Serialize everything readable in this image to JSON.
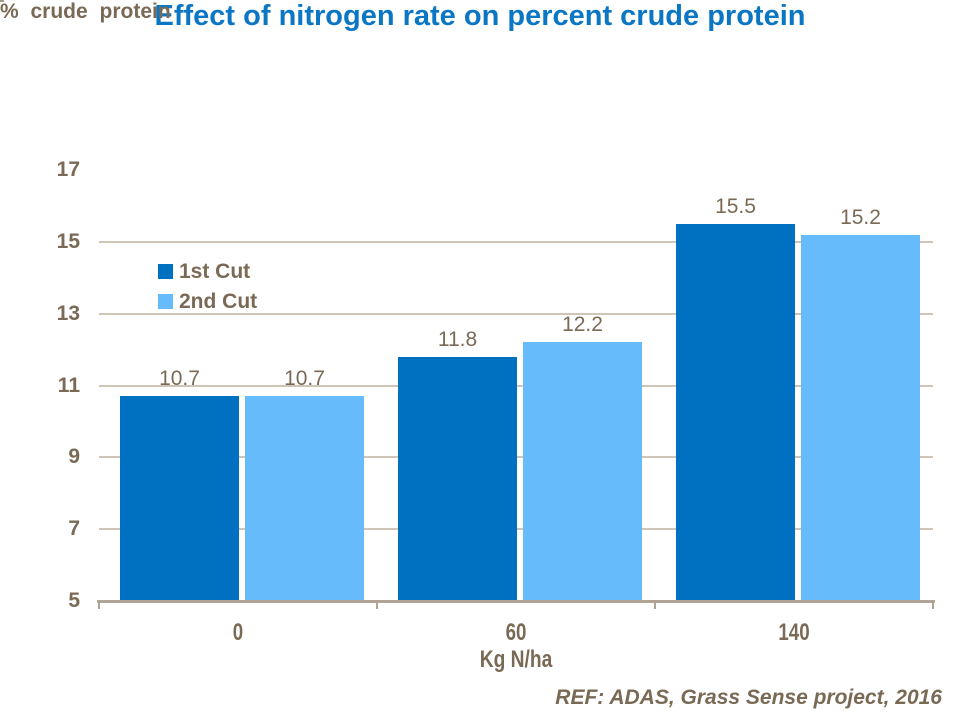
{
  "slide": {
    "footer": "REF: ADAS, Grass Sense project, 2016"
  },
  "chart_data": {
    "type": "bar",
    "title": "Effect of nitrogen rate on percent crude protein",
    "ylabel": "% crude protein",
    "xlabel": "Kg N/ha",
    "categories": [
      "0",
      "60",
      "140"
    ],
    "series": [
      {
        "name": "1st Cut",
        "color": "#0070C0",
        "values": [
          10.7,
          11.8,
          15.5
        ]
      },
      {
        "name": "2nd Cut",
        "color": "#66BCFA",
        "values": [
          10.7,
          12.2,
          15.2
        ]
      }
    ],
    "data_labels": [
      [
        "10.7",
        "11.8",
        "15.5"
      ],
      [
        "10.7",
        "12.2",
        "15.2"
      ]
    ],
    "ylim": [
      5,
      17
    ],
    "yticks": [
      5,
      7,
      9,
      11,
      13,
      15,
      17
    ],
    "grid": true,
    "legend_position": "inside-top-left"
  },
  "colors": {
    "title_blue": "#0B77C4",
    "text_brown": "#7A6A55",
    "bar_dark_blue": "#0070C0",
    "bar_light_blue": "#66BCFA",
    "gridline_tan": "#CFC4B5",
    "border_tan": "#A69A8A",
    "axis_tan": "#B0A595"
  }
}
